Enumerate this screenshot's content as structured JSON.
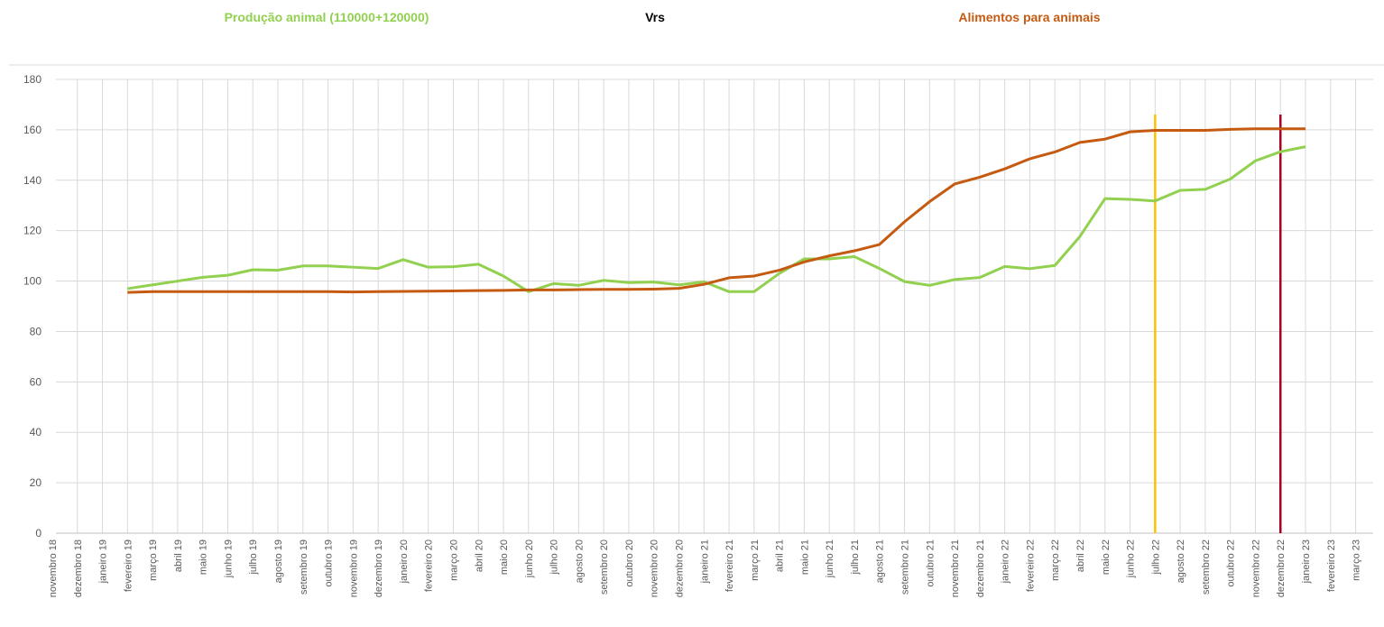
{
  "chart_data": {
    "type": "line",
    "connector": "Vrs",
    "categories": [
      "novembro 18",
      "dezembro 18",
      "janeiro 19",
      "fevereiro 19",
      "março 19",
      "abril 19",
      "maio 19",
      "junho 19",
      "julho 19",
      "agosto 19",
      "setembro 19",
      "outubro 19",
      "novembro 19",
      "dezembro 19",
      "janeiro 20",
      "fevereiro 20",
      "março 20",
      "abril 20",
      "maio 20",
      "junho 20",
      "julho 20",
      "agosto 20",
      "setembro 20",
      "outubro 20",
      "novembro 20",
      "dezembro 20",
      "janeiro 21",
      "fevereiro 21",
      "março 21",
      "abril 21",
      "maio 21",
      "junho 21",
      "julho 21",
      "agosto 21",
      "setembro 21",
      "outubro 21",
      "novembro 21",
      "dezembro 21",
      "janeiro 22",
      "fevereiro 22",
      "março 22",
      "abril 22",
      "maio 22",
      "junho 22",
      "julho 22",
      "agosto 22",
      "setembro 22",
      "outubro 22",
      "novembro 22",
      "dezembro 22",
      "janeiro 23",
      "fevereiro 23",
      "março 23"
    ],
    "series": [
      {
        "name": "Produção animal (110000+120000)",
        "color": "#92d050",
        "values": [
          null,
          null,
          null,
          97,
          98.5,
          100,
          101.5,
          102.3,
          104.5,
          104.3,
          106,
          106,
          105.5,
          105,
          108.5,
          105.5,
          105.7,
          106.7,
          102,
          95.8,
          99,
          98.3,
          100.3,
          99.4,
          99.6,
          98.5,
          99.7,
          95.8,
          95.8,
          103,
          108.8,
          108.8,
          109.7,
          105,
          99.8,
          98.3,
          100.6,
          101.4,
          105.8,
          104.9,
          106.2,
          117.7,
          132.7,
          132.4,
          131.8,
          136,
          136.4,
          140.5,
          147.7,
          151.3,
          153.3,
          null,
          null
        ]
      },
      {
        "name": "Alimentos para animais",
        "color": "#c55a11",
        "values": [
          null,
          null,
          null,
          95.5,
          95.8,
          95.8,
          95.8,
          95.8,
          95.8,
          95.8,
          95.8,
          95.8,
          95.7,
          95.8,
          95.9,
          96,
          96.1,
          96.2,
          96.3,
          96.5,
          96.5,
          96.6,
          96.7,
          96.7,
          96.8,
          97.1,
          98.7,
          101.3,
          102,
          104.3,
          107.6,
          110,
          112,
          114.5,
          123.5,
          131.5,
          138.5,
          141.2,
          144.5,
          148.5,
          151.2,
          155,
          156.3,
          159.2,
          159.8,
          159.8,
          159.8,
          160.2,
          160.4,
          160.4,
          160.4,
          null,
          null
        ]
      }
    ],
    "markers": [
      {
        "category": "julho 22",
        "color": "#ffc000"
      },
      {
        "category": "dezembro 22",
        "color": "#a50021"
      }
    ],
    "ylim": [
      0,
      180
    ],
    "yticks": [
      0,
      20,
      40,
      60,
      80,
      100,
      120,
      140,
      160,
      180
    ],
    "grid": true
  }
}
